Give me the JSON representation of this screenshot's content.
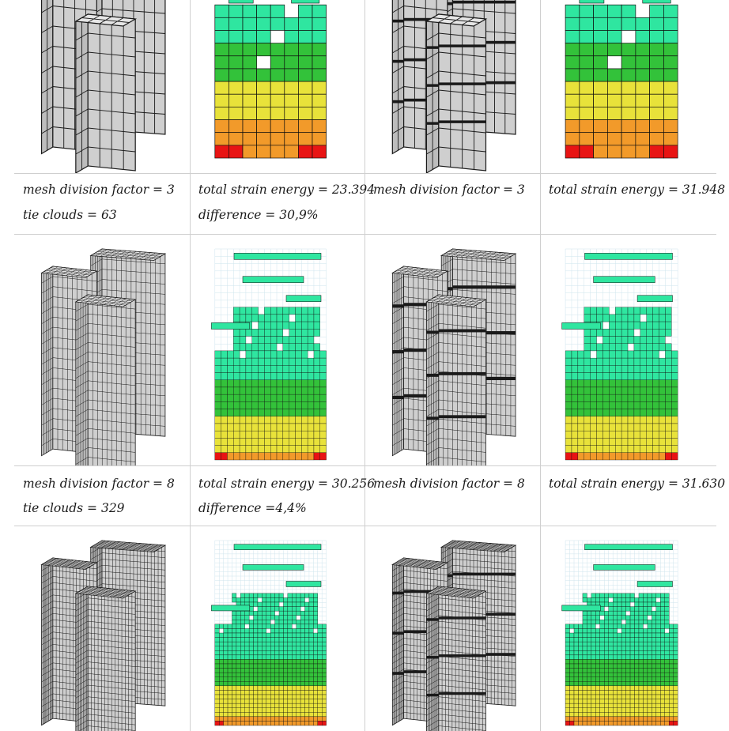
{
  "rows": [
    {
      "captions": [
        {
          "line1": "mesh division factor = 3",
          "line2": "tie clouds = 63"
        },
        {
          "line1": "total strain energy = 23.394",
          "line2": "difference = 30,9%"
        },
        {
          "line1": "mesh division factor = 3",
          "line2": ""
        },
        {
          "line1": "total strain energy = 31.948",
          "line2": ""
        }
      ]
    },
    {
      "captions": [
        {
          "line1": "mesh division factor = 8",
          "line2": "tie clouds = 329"
        },
        {
          "line1": "total strain energy = 30.256",
          "line2": "difference =4,4%"
        },
        {
          "line1": "mesh division factor = 8",
          "line2": ""
        },
        {
          "line1": "total strain energy = 31.630",
          "line2": ""
        }
      ]
    }
  ],
  "colors": {
    "mesh_face_left": "#bdbdbd",
    "mesh_face_front": "#cfcfcf",
    "mesh_face_top": "#e6e6e6",
    "mesh_line": "#1a1a1a",
    "energy_low": "#2fe6a0",
    "energy_mid": "#33c23a",
    "energy_high_yellow": "#e8e23a",
    "energy_orange": "#f29a2a",
    "energy_red": "#e81414",
    "ghost_grid": "#a8cfe0",
    "divider": "#cfcfcf"
  },
  "figure_types": [
    "grey-mesh-towers",
    "strain-energy-voxels-tie-clouds",
    "grey-mesh-towers-refined",
    "strain-energy-voxels-reference"
  ]
}
